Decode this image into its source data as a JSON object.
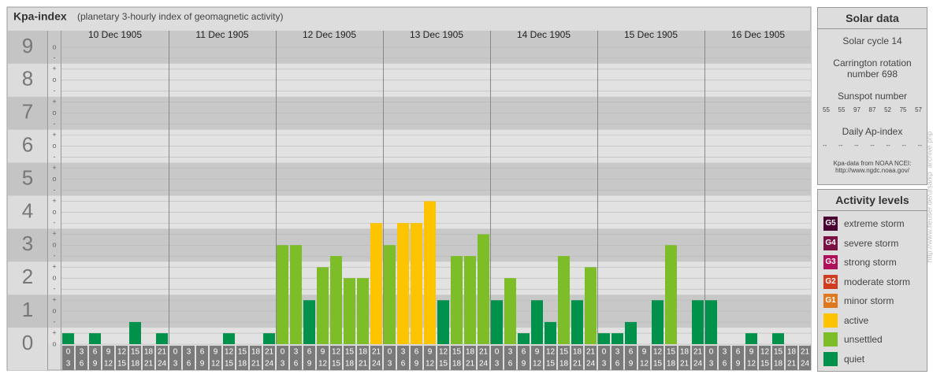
{
  "title": "Kpa-index",
  "subtitle": "(planetary 3-hourly index of geomagnetic activity)",
  "chart_data": {
    "type": "bar",
    "days": [
      "10 Dec 1905",
      "11 Dec 1905",
      "12 Dec 1905",
      "13 Dec 1905",
      "14 Dec 1905",
      "15 Dec 1905",
      "16 Dec 1905"
    ],
    "slot_starts": [
      0,
      3,
      6,
      9,
      12,
      15,
      18,
      21
    ],
    "slot_ends": [
      3,
      6,
      9,
      12,
      15,
      18,
      21,
      24
    ],
    "ylim": [
      0,
      9.5
    ],
    "yticks": [
      0,
      1,
      2,
      3,
      4,
      5,
      6,
      7,
      8,
      9
    ],
    "minor_labels": [
      "+",
      "o",
      "-"
    ],
    "values": [
      [
        0.33,
        0,
        0.33,
        0,
        0,
        0.67,
        0,
        0.33
      ],
      [
        0,
        0,
        0,
        0,
        0.33,
        0,
        0,
        0.33
      ],
      [
        3,
        3,
        1.33,
        2.33,
        2.67,
        2,
        2,
        3.67
      ],
      [
        3,
        3.67,
        3.67,
        4.33,
        1.33,
        2.67,
        2.67,
        3.33
      ],
      [
        1.33,
        2,
        0.33,
        1.33,
        0.67,
        2.67,
        1.33,
        2.33
      ],
      [
        0.33,
        0.33,
        0.67,
        0,
        1.33,
        3,
        0,
        1.33
      ],
      [
        1.33,
        0,
        0,
        0.33,
        0,
        0.33,
        0,
        0
      ]
    ],
    "colors": [
      [
        "#00924a",
        "#00924a",
        "#00924a",
        "#00924a",
        "#00924a",
        "#00924a",
        "#00924a",
        "#00924a"
      ],
      [
        "#00924a",
        "#00924a",
        "#00924a",
        "#00924a",
        "#00924a",
        "#00924a",
        "#00924a",
        "#00924a"
      ],
      [
        "#7dbe28",
        "#7dbe28",
        "#00924a",
        "#7dbe28",
        "#7dbe28",
        "#7dbe28",
        "#7dbe28",
        "#ffc400"
      ],
      [
        "#7dbe28",
        "#ffc400",
        "#ffc400",
        "#ffc400",
        "#00924a",
        "#7dbe28",
        "#7dbe28",
        "#7dbe28"
      ],
      [
        "#00924a",
        "#7dbe28",
        "#00924a",
        "#00924a",
        "#00924a",
        "#7dbe28",
        "#00924a",
        "#7dbe28"
      ],
      [
        "#00924a",
        "#00924a",
        "#00924a",
        "#00924a",
        "#00924a",
        "#7dbe28",
        "#00924a",
        "#00924a"
      ],
      [
        "#00924a",
        "#00924a",
        "#00924a",
        "#00924a",
        "#00924a",
        "#00924a",
        "#00924a",
        "#00924a"
      ]
    ]
  },
  "solar": {
    "title": "Solar data",
    "cycle": "Solar cycle 14",
    "carrington": "Carrington rotation number 698",
    "sunspot_label": "Sunspot number",
    "sunspots": [
      55,
      55,
      97,
      87,
      52,
      75,
      57
    ],
    "ap_label": "Daily Ap-index",
    "ap": [
      "--",
      "--",
      "--",
      "--",
      "--",
      "--",
      "--"
    ],
    "source": "Kpa-data from NOAA NCEI:",
    "source_url": "http://www.ngdc.noaa.gov/"
  },
  "levels": {
    "title": "Activity levels",
    "items": [
      {
        "code": "G5",
        "name": "extreme storm",
        "color": "#4a0030"
      },
      {
        "code": "G4",
        "name": "severe storm",
        "color": "#7a1044"
      },
      {
        "code": "G3",
        "name": "strong storm",
        "color": "#b0105a"
      },
      {
        "code": "G2",
        "name": "moderate storm",
        "color": "#d03c20"
      },
      {
        "code": "G1",
        "name": "minor storm",
        "color": "#e07820"
      },
      {
        "name": "active",
        "color": "#ffc400"
      },
      {
        "name": "unsettled",
        "color": "#7dbe28"
      },
      {
        "name": "quiet",
        "color": "#00924a"
      }
    ]
  },
  "watermark": "http://www.fleuser.de/ursa/kp_archive.php"
}
